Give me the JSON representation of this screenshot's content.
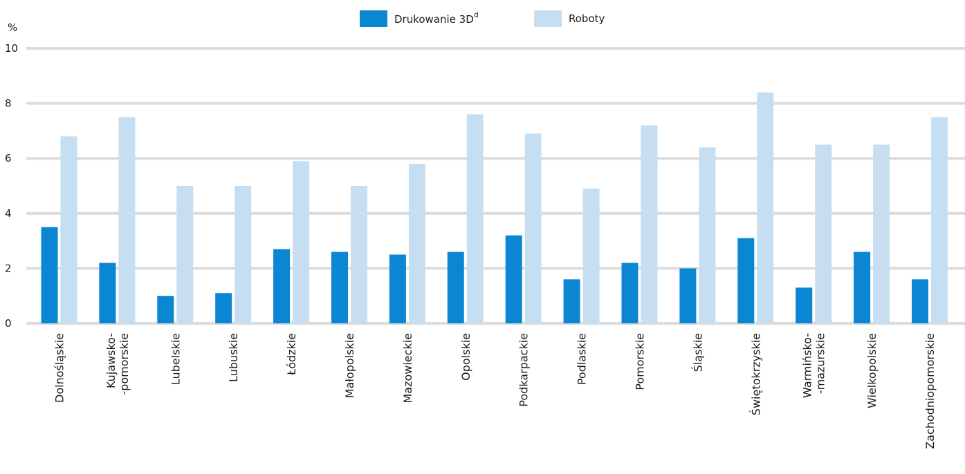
{
  "chart_data": {
    "type": "bar",
    "y_unit": "%",
    "ylim": [
      0,
      10
    ],
    "y_ticks": [
      "0",
      "2",
      "4",
      "6",
      "8",
      "10"
    ],
    "grid": true,
    "legend_placement": "top-center",
    "categories": [
      [
        "Dolnośląskie"
      ],
      [
        "Kujawsko-",
        "-pomorskie"
      ],
      [
        "Lubelskie"
      ],
      [
        "Lubuskie"
      ],
      [
        "Łódzkie"
      ],
      [
        "Małopolskie"
      ],
      [
        "Mazowieckie"
      ],
      [
        "Opolskie"
      ],
      [
        "Podkarpackie"
      ],
      [
        "Podlaskie"
      ],
      [
        "Pomorskie"
      ],
      [
        "Śląskie"
      ],
      [
        "Świętokrzyskie"
      ],
      [
        "Warmińsko-",
        "-mazurskie"
      ],
      [
        "Wielkopolskie"
      ],
      [
        "Zachodniopomorskie"
      ]
    ],
    "series": [
      {
        "name": "Drukowanie 3D",
        "name_sup": "d",
        "color": "#0a86d2",
        "values": [
          3.5,
          2.2,
          1.0,
          1.1,
          2.7,
          2.6,
          2.5,
          2.6,
          3.2,
          1.6,
          2.2,
          2.0,
          3.1,
          1.3,
          2.6,
          1.6
        ]
      },
      {
        "name": "Roboty",
        "color": "#c6def2",
        "values": [
          6.8,
          7.5,
          5.0,
          5.0,
          5.9,
          5.0,
          5.8,
          7.6,
          6.9,
          4.9,
          7.2,
          6.4,
          8.4,
          6.5,
          6.5,
          7.5
        ]
      }
    ],
    "gridline_color": "#dcdcdc"
  }
}
